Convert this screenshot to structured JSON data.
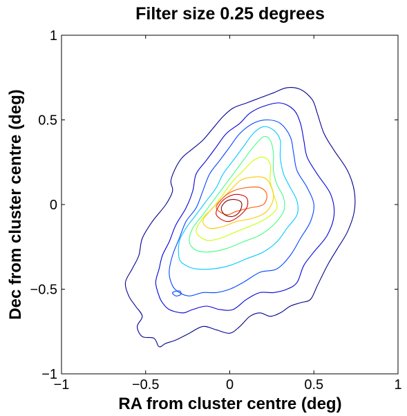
{
  "chart_data": {
    "type": "contour",
    "title": "Filter size 0.25 degrees",
    "xlabel": "RA from cluster centre (deg)",
    "ylabel": "Dec from cluster centre (deg)",
    "xlim": [
      -1,
      1
    ],
    "ylim": [
      -1,
      1
    ],
    "xticks": [
      -1,
      -0.5,
      0,
      0.5,
      1
    ],
    "yticks": [
      -1,
      -0.5,
      0,
      0.5,
      1
    ],
    "xtick_labels": [
      "−1",
      "−0.5",
      "0",
      "0.5",
      "1"
    ],
    "ytick_labels": [
      "−1",
      "−0.5",
      "0",
      "0.5",
      "1"
    ],
    "grid": false,
    "box": true,
    "colormap": "jet",
    "contours": [
      {
        "level": 1,
        "color": "#00008f",
        "points": [
          [
            -0.45,
            -0.79
          ],
          [
            -0.52,
            -0.78
          ],
          [
            -0.55,
            -0.72
          ],
          [
            -0.52,
            -0.66
          ],
          [
            -0.56,
            -0.6
          ],
          [
            -0.6,
            -0.54
          ],
          [
            -0.62,
            -0.46
          ],
          [
            -0.58,
            -0.38
          ],
          [
            -0.54,
            -0.3
          ],
          [
            -0.52,
            -0.2
          ],
          [
            -0.46,
            -0.1
          ],
          [
            -0.38,
            0.0
          ],
          [
            -0.34,
            0.08
          ],
          [
            -0.35,
            0.14
          ],
          [
            -0.32,
            0.22
          ],
          [
            -0.28,
            0.28
          ],
          [
            -0.22,
            0.33
          ],
          [
            -0.16,
            0.38
          ],
          [
            -0.1,
            0.45
          ],
          [
            -0.04,
            0.52
          ],
          [
            0.02,
            0.57
          ],
          [
            0.1,
            0.6
          ],
          [
            0.18,
            0.63
          ],
          [
            0.26,
            0.66
          ],
          [
            0.34,
            0.69
          ],
          [
            0.42,
            0.68
          ],
          [
            0.49,
            0.62
          ],
          [
            0.52,
            0.54
          ],
          [
            0.56,
            0.42
          ],
          [
            0.62,
            0.32
          ],
          [
            0.7,
            0.2
          ],
          [
            0.74,
            0.08
          ],
          [
            0.74,
            -0.04
          ],
          [
            0.7,
            -0.16
          ],
          [
            0.64,
            -0.26
          ],
          [
            0.58,
            -0.36
          ],
          [
            0.52,
            -0.48
          ],
          [
            0.48,
            -0.56
          ],
          [
            0.42,
            -0.58
          ],
          [
            0.36,
            -0.6
          ],
          [
            0.3,
            -0.64
          ],
          [
            0.24,
            -0.66
          ],
          [
            0.18,
            -0.64
          ],
          [
            0.12,
            -0.66
          ],
          [
            0.06,
            -0.72
          ],
          [
            0.0,
            -0.76
          ],
          [
            -0.08,
            -0.74
          ],
          [
            -0.16,
            -0.72
          ],
          [
            -0.24,
            -0.76
          ],
          [
            -0.32,
            -0.8
          ],
          [
            -0.38,
            -0.82
          ],
          [
            -0.42,
            -0.84
          ],
          [
            -0.45,
            -0.79
          ]
        ]
      },
      {
        "level": 2,
        "color": "#0000d8",
        "points": [
          [
            -0.42,
            -0.54
          ],
          [
            -0.44,
            -0.46
          ],
          [
            -0.42,
            -0.38
          ],
          [
            -0.4,
            -0.3
          ],
          [
            -0.36,
            -0.22
          ],
          [
            -0.32,
            -0.12
          ],
          [
            -0.26,
            -0.02
          ],
          [
            -0.22,
            0.08
          ],
          [
            -0.2,
            0.18
          ],
          [
            -0.14,
            0.26
          ],
          [
            -0.08,
            0.34
          ],
          [
            -0.02,
            0.42
          ],
          [
            0.06,
            0.48
          ],
          [
            0.12,
            0.54
          ],
          [
            0.2,
            0.58
          ],
          [
            0.3,
            0.6
          ],
          [
            0.38,
            0.56
          ],
          [
            0.42,
            0.48
          ],
          [
            0.44,
            0.38
          ],
          [
            0.46,
            0.28
          ],
          [
            0.52,
            0.18
          ],
          [
            0.6,
            0.06
          ],
          [
            0.62,
            -0.06
          ],
          [
            0.58,
            -0.18
          ],
          [
            0.5,
            -0.28
          ],
          [
            0.44,
            -0.36
          ],
          [
            0.4,
            -0.46
          ],
          [
            0.34,
            -0.5
          ],
          [
            0.26,
            -0.52
          ],
          [
            0.18,
            -0.52
          ],
          [
            0.1,
            -0.56
          ],
          [
            0.02,
            -0.62
          ],
          [
            -0.06,
            -0.62
          ],
          [
            -0.14,
            -0.6
          ],
          [
            -0.22,
            -0.62
          ],
          [
            -0.28,
            -0.64
          ],
          [
            -0.36,
            -0.62
          ],
          [
            -0.4,
            -0.58
          ],
          [
            -0.42,
            -0.54
          ]
        ]
      },
      {
        "level": 3,
        "color": "#0046ff",
        "points": [
          [
            -0.34,
            -0.48
          ],
          [
            -0.36,
            -0.4
          ],
          [
            -0.34,
            -0.3
          ],
          [
            -0.3,
            -0.2
          ],
          [
            -0.26,
            -0.1
          ],
          [
            -0.2,
            -0.02
          ],
          [
            -0.16,
            0.08
          ],
          [
            -0.12,
            0.18
          ],
          [
            -0.06,
            0.26
          ],
          [
            0.0,
            0.34
          ],
          [
            0.06,
            0.42
          ],
          [
            0.14,
            0.48
          ],
          [
            0.22,
            0.5
          ],
          [
            0.3,
            0.48
          ],
          [
            0.36,
            0.4
          ],
          [
            0.38,
            0.3
          ],
          [
            0.4,
            0.2
          ],
          [
            0.46,
            0.1
          ],
          [
            0.5,
            0.0
          ],
          [
            0.48,
            -0.1
          ],
          [
            0.42,
            -0.2
          ],
          [
            0.36,
            -0.3
          ],
          [
            0.28,
            -0.38
          ],
          [
            0.18,
            -0.4
          ],
          [
            0.08,
            -0.46
          ],
          [
            0.0,
            -0.5
          ],
          [
            -0.08,
            -0.52
          ],
          [
            -0.16,
            -0.52
          ],
          [
            -0.24,
            -0.54
          ],
          [
            -0.3,
            -0.52
          ],
          [
            -0.34,
            -0.48
          ]
        ]
      },
      {
        "level": 4,
        "color": "#00c8ff",
        "points": [
          [
            -0.3,
            -0.32
          ],
          [
            -0.3,
            -0.22
          ],
          [
            -0.26,
            -0.14
          ],
          [
            -0.2,
            -0.06
          ],
          [
            -0.14,
            0.02
          ],
          [
            -0.08,
            0.1
          ],
          [
            -0.04,
            0.18
          ],
          [
            0.02,
            0.26
          ],
          [
            0.08,
            0.34
          ],
          [
            0.14,
            0.42
          ],
          [
            0.2,
            0.46
          ],
          [
            0.26,
            0.44
          ],
          [
            0.3,
            0.38
          ],
          [
            0.3,
            0.28
          ],
          [
            0.32,
            0.18
          ],
          [
            0.36,
            0.1
          ],
          [
            0.4,
            0.02
          ],
          [
            0.4,
            -0.06
          ],
          [
            0.34,
            -0.14
          ],
          [
            0.28,
            -0.22
          ],
          [
            0.2,
            -0.28
          ],
          [
            0.1,
            -0.32
          ],
          [
            0.0,
            -0.36
          ],
          [
            -0.1,
            -0.38
          ],
          [
            -0.2,
            -0.38
          ],
          [
            -0.26,
            -0.36
          ],
          [
            -0.3,
            -0.32
          ]
        ]
      },
      {
        "level": 5,
        "color": "#40ff80",
        "points": [
          [
            -0.24,
            -0.22
          ],
          [
            -0.22,
            -0.14
          ],
          [
            -0.16,
            -0.06
          ],
          [
            -0.1,
            0.02
          ],
          [
            -0.04,
            0.1
          ],
          [
            0.02,
            0.18
          ],
          [
            0.08,
            0.26
          ],
          [
            0.14,
            0.34
          ],
          [
            0.2,
            0.4
          ],
          [
            0.24,
            0.38
          ],
          [
            0.26,
            0.3
          ],
          [
            0.26,
            0.2
          ],
          [
            0.28,
            0.12
          ],
          [
            0.32,
            0.04
          ],
          [
            0.32,
            -0.04
          ],
          [
            0.26,
            -0.12
          ],
          [
            0.18,
            -0.18
          ],
          [
            0.08,
            -0.22
          ],
          [
            -0.02,
            -0.26
          ],
          [
            -0.12,
            -0.28
          ],
          [
            -0.2,
            -0.27
          ],
          [
            -0.24,
            -0.22
          ]
        ]
      },
      {
        "level": 6,
        "color": "#c8ff00",
        "points": [
          [
            -0.2,
            -0.16
          ],
          [
            -0.16,
            -0.08
          ],
          [
            -0.1,
            -0.02
          ],
          [
            -0.04,
            0.06
          ],
          [
            0.02,
            0.14
          ],
          [
            0.08,
            0.2
          ],
          [
            0.14,
            0.26
          ],
          [
            0.2,
            0.28
          ],
          [
            0.24,
            0.24
          ],
          [
            0.24,
            0.14
          ],
          [
            0.26,
            0.06
          ],
          [
            0.28,
            -0.02
          ],
          [
            0.22,
            -0.08
          ],
          [
            0.14,
            -0.12
          ],
          [
            0.04,
            -0.16
          ],
          [
            -0.06,
            -0.2
          ],
          [
            -0.14,
            -0.21
          ],
          [
            -0.2,
            -0.16
          ]
        ]
      },
      {
        "level": 7,
        "color": "#ffc800",
        "points": [
          [
            -0.16,
            -0.1
          ],
          [
            -0.12,
            -0.04
          ],
          [
            -0.06,
            0.02
          ],
          [
            0.0,
            0.08
          ],
          [
            0.06,
            0.14
          ],
          [
            0.12,
            0.16
          ],
          [
            0.2,
            0.16
          ],
          [
            0.24,
            0.12
          ],
          [
            0.26,
            0.04
          ],
          [
            0.22,
            -0.04
          ],
          [
            0.14,
            -0.08
          ],
          [
            0.04,
            -0.1
          ],
          [
            -0.04,
            -0.13
          ],
          [
            -0.12,
            -0.14
          ],
          [
            -0.16,
            -0.1
          ]
        ]
      },
      {
        "level": 8,
        "color": "#ff5000",
        "points": [
          [
            -0.08,
            -0.02
          ],
          [
            -0.04,
            0.04
          ],
          [
            0.02,
            0.08
          ],
          [
            0.1,
            0.1
          ],
          [
            0.18,
            0.1
          ],
          [
            0.22,
            0.06
          ],
          [
            0.2,
            0.0
          ],
          [
            0.12,
            -0.02
          ],
          [
            0.04,
            -0.04
          ],
          [
            -0.02,
            -0.06
          ],
          [
            -0.08,
            -0.02
          ]
        ]
      },
      {
        "level": 9,
        "color": "#d80000",
        "points": [
          [
            -0.08,
            -0.06
          ],
          [
            -0.06,
            0.0
          ],
          [
            -0.02,
            0.04
          ],
          [
            0.04,
            0.06
          ],
          [
            0.1,
            0.04
          ],
          [
            0.1,
            -0.02
          ],
          [
            0.04,
            -0.08
          ],
          [
            -0.02,
            -0.1
          ],
          [
            -0.08,
            -0.06
          ]
        ]
      },
      {
        "level": 10,
        "color": "#800000",
        "points": [
          [
            -0.05,
            -0.02
          ],
          [
            -0.02,
            0.02
          ],
          [
            0.03,
            0.03
          ],
          [
            0.07,
            0.01
          ],
          [
            0.06,
            -0.04
          ],
          [
            0.02,
            -0.07
          ],
          [
            -0.03,
            -0.06
          ],
          [
            -0.05,
            -0.02
          ]
        ]
      },
      {
        "level": 3,
        "color": "#0046ff",
        "points": [
          [
            -0.34,
            -0.52
          ],
          [
            -0.32,
            -0.54
          ],
          [
            -0.29,
            -0.53
          ],
          [
            -0.3,
            -0.51
          ],
          [
            -0.34,
            -0.52
          ]
        ]
      }
    ]
  }
}
